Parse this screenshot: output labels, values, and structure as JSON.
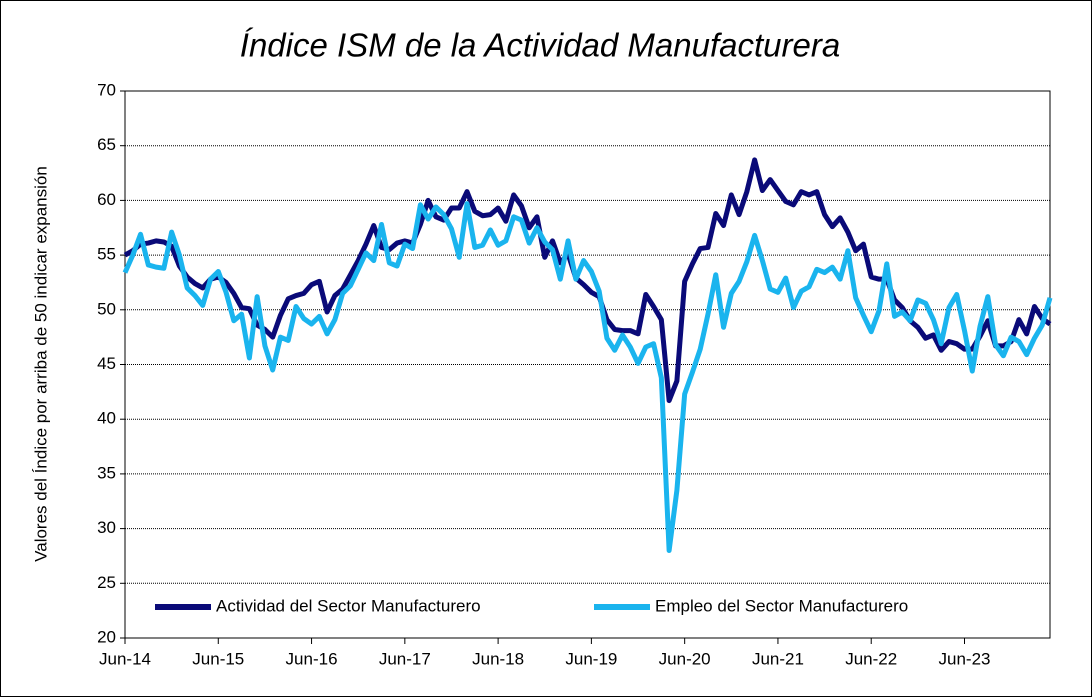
{
  "chart_data": {
    "type": "line",
    "title": "Índice ISM de la Actividad Manufacturera",
    "y_label": "Valores del Índice por arriba de 50 indicar expansión",
    "categories": [
      "Jun-14",
      null,
      null,
      null,
      null,
      null,
      null,
      null,
      null,
      null,
      null,
      null,
      "Jun-15",
      null,
      null,
      null,
      null,
      null,
      null,
      null,
      null,
      null,
      null,
      null,
      "Jun-16",
      null,
      null,
      null,
      null,
      null,
      null,
      null,
      null,
      null,
      null,
      null,
      "Jun-17",
      null,
      null,
      null,
      null,
      null,
      null,
      null,
      null,
      null,
      null,
      null,
      "Jun-18",
      null,
      null,
      null,
      null,
      null,
      null,
      null,
      null,
      null,
      null,
      null,
      "Jun-19",
      null,
      null,
      null,
      null,
      null,
      null,
      null,
      null,
      null,
      null,
      null,
      "Jun-20",
      null,
      null,
      null,
      null,
      null,
      null,
      null,
      null,
      null,
      null,
      null,
      "Jun-21",
      null,
      null,
      null,
      null,
      null,
      null,
      null,
      null,
      null,
      null,
      null,
      "Jun-22",
      null,
      null,
      null,
      null,
      null,
      null,
      null,
      null,
      null,
      null,
      null,
      "Jun-23",
      null,
      null,
      null,
      null,
      null,
      null,
      null,
      null,
      null,
      null,
      null
    ],
    "series": [
      {
        "name": "Actividad del Sector Manufacturero",
        "color": "#0a0a78",
        "values": [
          55,
          55.4,
          56,
          56.1,
          56.3,
          56.2,
          55.8,
          54,
          53,
          52.4,
          52,
          52.8,
          53,
          52.5,
          51.5,
          50.2,
          50.1,
          48.6,
          48.2,
          47.5,
          49.5,
          51,
          51.3,
          51.5,
          52.3,
          52.6,
          49.8,
          51.3,
          51.9,
          53.2,
          54.5,
          56,
          57.7,
          55.7,
          55.5,
          56.1,
          56.3,
          56.1,
          57.8,
          60,
          58.5,
          58.2,
          59.3,
          59.3,
          60.8,
          59,
          58.6,
          58.7,
          59.3,
          58.1,
          60.5,
          59.5,
          57.5,
          58.5,
          54.8,
          56.3,
          54.3,
          55.1,
          52.9,
          52.3,
          51.6,
          51.2,
          49.1,
          48.2,
          48.1,
          48.1,
          47.8,
          51.4,
          50.3,
          49.1,
          41.7,
          43.5,
          52.6,
          54.2,
          55.6,
          55.7,
          58.8,
          57.7,
          60.5,
          58.7,
          60.8,
          63.7,
          60.9,
          61.9,
          60.9,
          59.9,
          59.6,
          60.8,
          60.5,
          60.8,
          58.7,
          57.6,
          58.4,
          57.1,
          55.4,
          56,
          53,
          52.8,
          52.8,
          50.9,
          50.2,
          49,
          48.4,
          47.4,
          47.7,
          46.3,
          47.1,
          46.9,
          46.4,
          46.4,
          47.6,
          49,
          46.7,
          46.7,
          47.1,
          49.1,
          47.8,
          50.3,
          49.2,
          48.7
        ]
      },
      {
        "name": "Empleo del Sector Manufacturero",
        "color": "#1ab4ee",
        "values": [
          53.4,
          55,
          56.9,
          54.1,
          53.9,
          53.8,
          57.1,
          55,
          52,
          51.3,
          50.4,
          52.8,
          53.5,
          51.6,
          49,
          49.6,
          45.6,
          51.2,
          46.7,
          44.5,
          47.5,
          47.2,
          50.3,
          49.2,
          48.7,
          49.4,
          47.8,
          49.1,
          51.5,
          52.2,
          53.7,
          55.2,
          54.5,
          57.8,
          54.3,
          54,
          56,
          55.6,
          59.6,
          58.3,
          59.4,
          58.7,
          57.4,
          54.8,
          59.7,
          55.7,
          55.9,
          57.3,
          55.9,
          56.3,
          58.5,
          58.2,
          56.1,
          57.5,
          56.2,
          55.5,
          52.8,
          56.3,
          52.8,
          54.5,
          53.5,
          51.7,
          47.4,
          46.3,
          47.7,
          46.6,
          45.1,
          46.6,
          46.9,
          43.8,
          28,
          33.5,
          42.3,
          44.3,
          46.4,
          49.6,
          53.2,
          48.4,
          51.5,
          52.6,
          54.4,
          56.8,
          54.5,
          51.9,
          51.6,
          52.9,
          50.2,
          51.7,
          52.1,
          53.7,
          53.4,
          53.9,
          52.8,
          55.4,
          51.1,
          49.5,
          48,
          49.9,
          54.2,
          49.4,
          49.8,
          49,
          50.9,
          50.6,
          49.1,
          46.9,
          50.2,
          51.4,
          48.1,
          44.4,
          48.5,
          51.2,
          46.8,
          45.8,
          47.5,
          47.1,
          45.9,
          47.4,
          48.6,
          51.1
        ]
      }
    ],
    "ylim": [
      20,
      70
    ],
    "yticks": [
      20,
      25,
      30,
      35,
      40,
      45,
      50,
      55,
      60,
      65,
      70
    ],
    "grid": true,
    "legend": "bottom"
  }
}
